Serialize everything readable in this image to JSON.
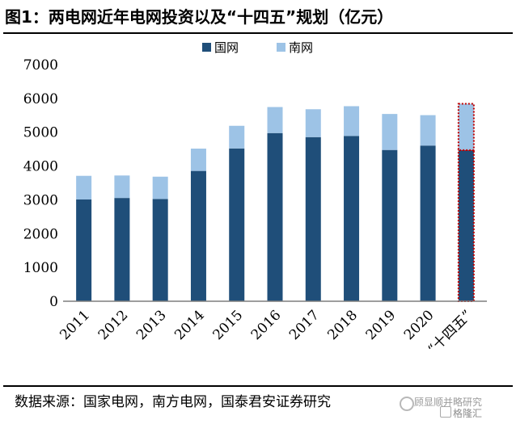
{
  "header": {
    "title": "图1：两电网近年电网投资以及“十四五”规划（亿元）"
  },
  "footer": {
    "source": "数据来源：国家电网，南方电网，国泰君安证券研究"
  },
  "watermark": {
    "text": "顾显顺并略研究",
    "subtext": "格隆汇"
  },
  "colors": {
    "state_grid": "#1f4e79",
    "south_grid": "#9dc3e6",
    "highlight_border": "#c00000"
  },
  "chart_data": {
    "type": "bar",
    "stacked": true,
    "categories": [
      "2011",
      "2012",
      "2013",
      "2014",
      "2015",
      "2016",
      "2017",
      "2018",
      "2019",
      "2020",
      "“十四五”"
    ],
    "series": [
      {
        "name": "国网",
        "values": [
          3010,
          3055,
          3025,
          3855,
          4520,
          4975,
          4855,
          4890,
          4475,
          4605,
          4470
        ],
        "color": "#1f4e79"
      },
      {
        "name": "南网",
        "values": [
          700,
          665,
          660,
          660,
          670,
          770,
          825,
          880,
          1065,
          900,
          1370
        ],
        "color": "#9dc3e6"
      }
    ],
    "yticks": [
      0,
      1000,
      2000,
      3000,
      4000,
      5000,
      6000,
      7000
    ],
    "ylim": [
      0,
      7000
    ],
    "legend_position": "top-center",
    "highlight_category": "“十四五”",
    "grid": false
  }
}
